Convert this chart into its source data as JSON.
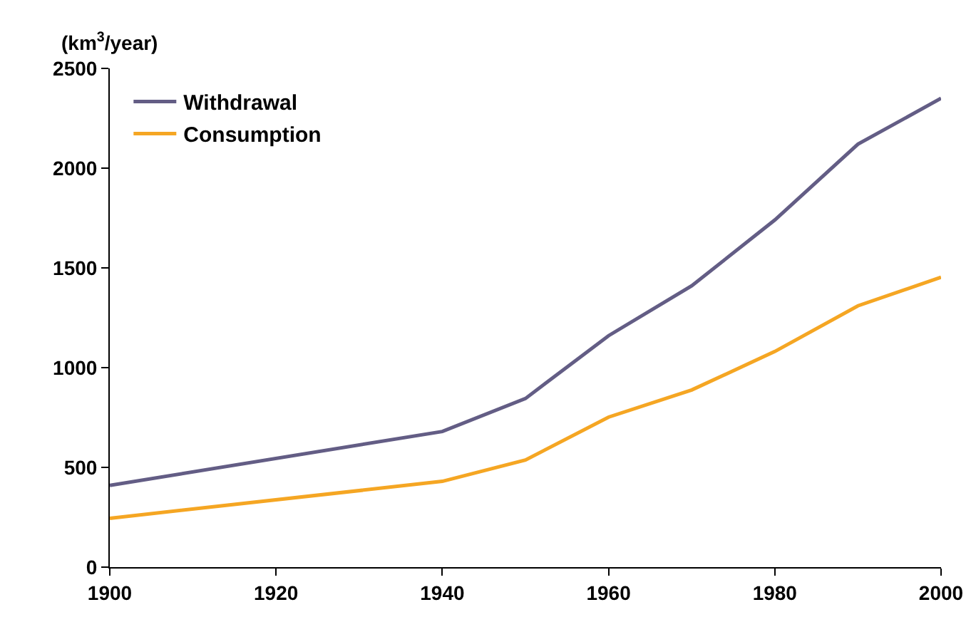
{
  "chart_data": {
    "type": "line",
    "ylabel": "(km$^{3}$/year)",
    "x": [
      1900,
      1940,
      1950,
      1960,
      1970,
      1980,
      1990,
      2000
    ],
    "series": [
      {
        "name": "Withdrawal",
        "color": "#635d85",
        "values": [
          410,
          680,
          845,
          1160,
          1410,
          1740,
          2120,
          2350
        ]
      },
      {
        "name": "Consumption",
        "color": "#f5a623",
        "values": [
          245,
          430,
          537,
          752,
          888,
          1081,
          1310,
          1453
        ]
      }
    ],
    "xlim": [
      1900,
      2000
    ],
    "xticks": [
      1900,
      1920,
      1940,
      1960,
      1980,
      2000
    ],
    "ylim": [
      0,
      2500
    ],
    "yticks": [
      0,
      500,
      1000,
      1500,
      2000,
      2500
    ],
    "grid": false,
    "legend": "top left",
    "marker": "none",
    "line_style": "solid"
  }
}
